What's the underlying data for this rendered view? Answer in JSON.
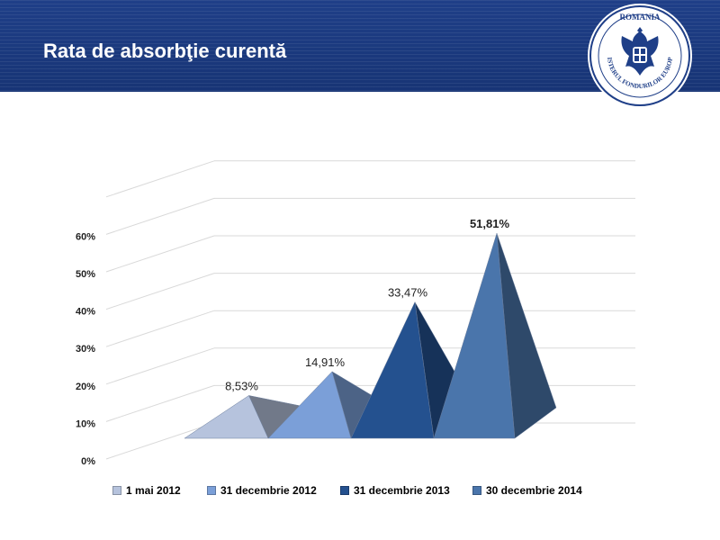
{
  "header": {
    "title": "Rata de absorbţie curentă",
    "logo": {
      "top_text": "ROMANIA",
      "ring_text": "MINISTERUL FONDURILOR EUROPENE",
      "icon": "coat-of-arms-icon"
    }
  },
  "colors": {
    "header_bg": "#1f3f88",
    "series": [
      "#b6c3dd",
      "#7b9fd8",
      "#24518f",
      "#4a75ab"
    ]
  },
  "chart_data": {
    "type": "bar",
    "style": "3d-pyramid",
    "categories": [
      "1 mai 2012",
      "31 decembrie 2012",
      "31 decembrie 2013",
      "30 decembrie 2014"
    ],
    "values": [
      8.53,
      14.91,
      33.47,
      51.81
    ],
    "data_labels": [
      "8,53%",
      "14,91%",
      "33,47%",
      "51,81%"
    ],
    "y_ticks": [
      "0%",
      "10%",
      "20%",
      "30%",
      "40%",
      "50%",
      "60%"
    ],
    "ylim": [
      0,
      70
    ],
    "grid": true,
    "legend": {
      "position": "bottom",
      "entries": [
        "1 mai 2012",
        "31 decembrie 2012",
        "31 decembrie 2013",
        "30 decembrie 2014"
      ]
    }
  }
}
